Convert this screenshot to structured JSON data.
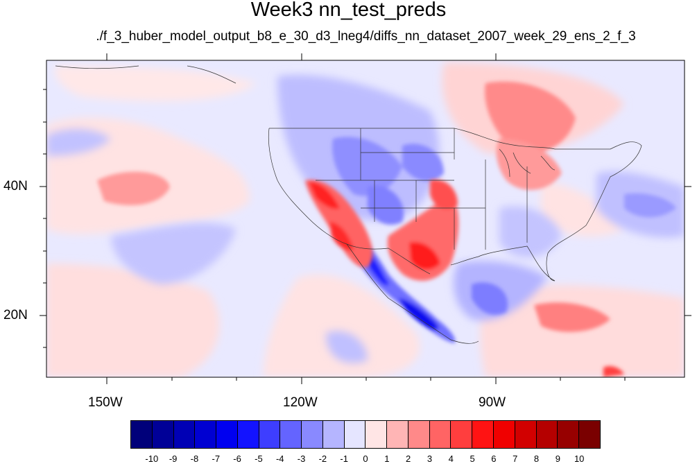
{
  "title": "Week3 nn_test_preds",
  "subtitle": "./f_3_huber_model_output_b8_e_30_d3_lneg4/diffs_nn_dataset_2007_week_29_ens_2_f_3",
  "axes": {
    "lon_labels": [
      "150W",
      "120W",
      "90W"
    ],
    "lat_labels": [
      "40N",
      "20N"
    ]
  },
  "colorbar": {
    "labels": [
      "-10",
      "-9",
      "-8",
      "-7",
      "-6",
      "-5",
      "-4",
      "-3",
      "-2",
      "-1",
      "0",
      "1",
      "2",
      "3",
      "4",
      "5",
      "6",
      "7",
      "8",
      "9",
      "10"
    ],
    "colors": [
      "#00007a",
      "#000097",
      "#0000b5",
      "#0000d2",
      "#0000f0",
      "#1313ff",
      "#3e3eff",
      "#6464ff",
      "#8989ff",
      "#b5b5ff",
      "#e5e5ff",
      "#ffe5e5",
      "#ffb5b5",
      "#ff8989",
      "#ff6464",
      "#ff3e3e",
      "#ff1313",
      "#f00000",
      "#d20000",
      "#b50000",
      "#970000",
      "#7a0000"
    ]
  },
  "chart_data": {
    "type": "heatmap",
    "title": "Week3 nn_test_preds",
    "subtitle": "./f_3_huber_model_output_b8_e_30_d3_lneg4/diffs_nn_dataset_2007_week_29_ens_2_f_3",
    "map_extent": {
      "lon": [
        -160,
        -60
      ],
      "lat": [
        10,
        59
      ]
    },
    "lon_ticks": [
      -150,
      -120,
      -90
    ],
    "lat_ticks": [
      40,
      20
    ],
    "levels": [
      -10,
      -9,
      -8,
      -7,
      -6,
      -5,
      -4,
      -3,
      -2,
      -1,
      0,
      1,
      2,
      3,
      4,
      5,
      6,
      7,
      8,
      9,
      10
    ],
    "features": [
      {
        "name": "southwest warm anomaly",
        "lon": -113,
        "lat": 35,
        "value": 6
      },
      {
        "name": "southern plains warm anomaly",
        "lon": -98,
        "lat": 31,
        "value": 5
      },
      {
        "name": "great lakes warm anomaly",
        "lon": -87,
        "lat": 46,
        "value": 4
      },
      {
        "name": "canada warm anomaly",
        "lon": -86,
        "lat": 53,
        "value": 5
      },
      {
        "name": "mexico west coast cold anomaly",
        "lon": -106,
        "lat": 22,
        "value": -6
      },
      {
        "name": "gulf cold anomaly",
        "lon": -90,
        "lat": 23,
        "value": -3
      },
      {
        "name": "caribbean warm anomaly",
        "lon": -78,
        "lat": 19,
        "value": 5
      },
      {
        "name": "pacific warm anomaly",
        "lon": -143,
        "lat": 40,
        "value": 3
      }
    ]
  }
}
